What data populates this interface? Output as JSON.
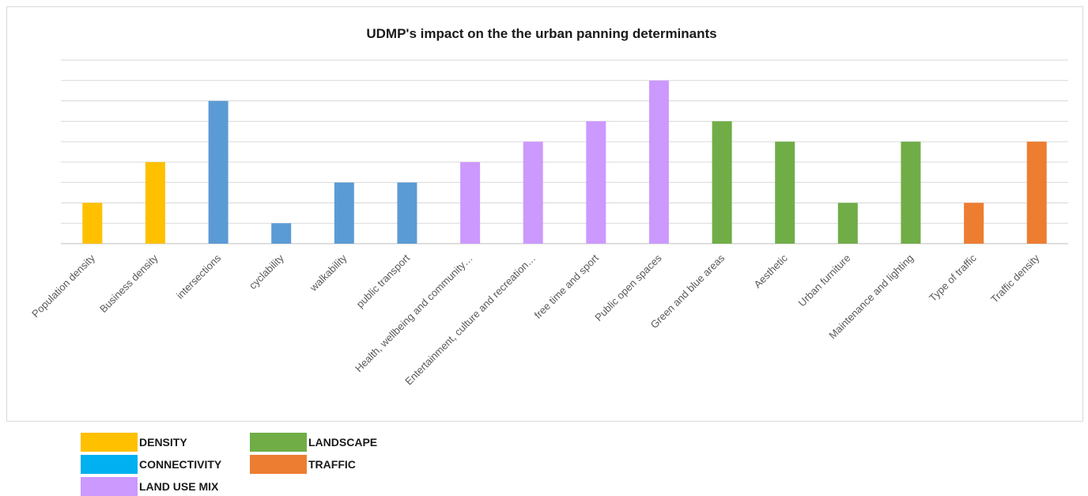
{
  "chart_data": {
    "type": "bar",
    "title": "UDMP's impact on the the urban panning determinants",
    "categories": [
      "Population density",
      "Business density",
      "intersections",
      "cyclability",
      "walkability",
      "public transport",
      "Health, wellbeing and community…",
      "Entertainment, culture and recreation…",
      "free time and sport",
      "Public open spaces",
      "Green and blue areas",
      "Aesthetic",
      "Urban furniture",
      "Maintenance and lighting",
      "Type of traffic",
      "Traffic density"
    ],
    "values": [
      2,
      4,
      7,
      1,
      3,
      3,
      4,
      5,
      6,
      8,
      6,
      5,
      2,
      5,
      2,
      5
    ],
    "groups": [
      "DENSITY",
      "DENSITY",
      "CONNECTIVITY",
      "CONNECTIVITY",
      "CONNECTIVITY",
      "CONNECTIVITY",
      "LAND USE MIX",
      "LAND USE MIX",
      "LAND USE MIX",
      "LAND USE MIX",
      "LANDSCAPE",
      "LANDSCAPE",
      "LANDSCAPE",
      "LANDSCAPE",
      "TRAFFIC",
      "TRAFFIC"
    ],
    "bar_colors": [
      "#ffc000",
      "#ffc000",
      "#5b9bd5",
      "#5b9bd5",
      "#5b9bd5",
      "#5b9bd5",
      "#cc99ff",
      "#cc99ff",
      "#cc99ff",
      "#cc99ff",
      "#70ad47",
      "#70ad47",
      "#70ad47",
      "#70ad47",
      "#ed7d31",
      "#ed7d31"
    ],
    "ylim": [
      0,
      9
    ],
    "grid": true,
    "y_tick_labels_shown": false,
    "xlabel": "",
    "ylabel": ""
  },
  "legend": {
    "items": [
      {
        "label": "DENSITY",
        "color": "#ffc000"
      },
      {
        "label": "CONNECTIVITY",
        "color": "#00b0f0"
      },
      {
        "label": "LAND USE MIX",
        "color": "#cc99ff"
      },
      {
        "label": "LANDSCAPE",
        "color": "#70ad47"
      },
      {
        "label": "TRAFFIC",
        "color": "#ed7d31"
      }
    ]
  }
}
